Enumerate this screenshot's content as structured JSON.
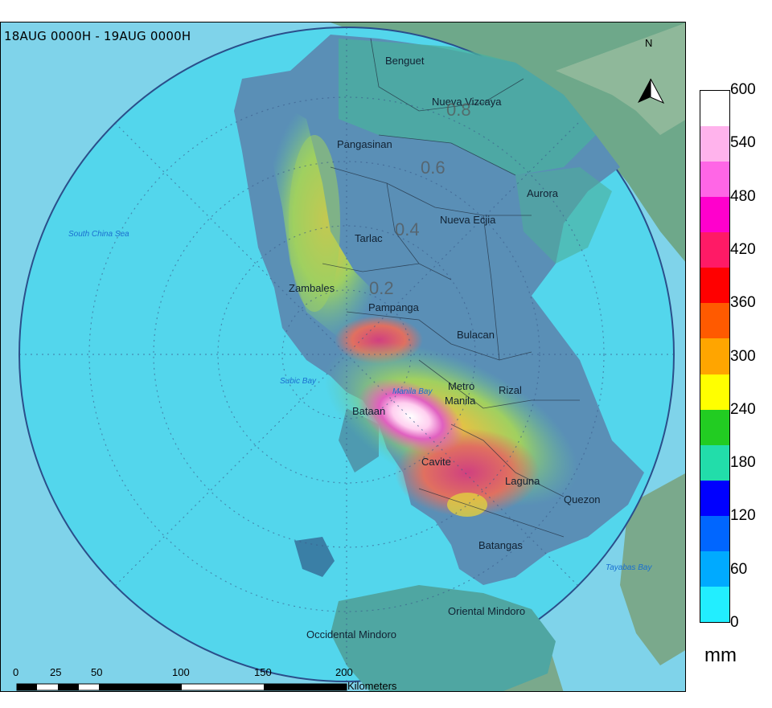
{
  "map": {
    "time_range": "18AUG 0000H - 19AUG 0000H",
    "north_label": "N",
    "provinces": [
      "Benguet",
      "Nueva Vizcaya",
      "Pangasinan",
      "Aurora",
      "Nueva Ecjia",
      "Tarlac",
      "Zambales",
      "Pampanga",
      "Bulacan",
      "Metro",
      "Manila",
      "Rizal",
      "Bataan",
      "Cavite",
      "Laguna",
      "Quezon",
      "Batangas",
      "Oriental Mindoro",
      "Occidental Mindoro"
    ],
    "water_bodies": [
      "South China Sea",
      "Subic Bay",
      "Manila Bay",
      "Tayabas Bay"
    ],
    "range_ring_labels": [
      "0.2",
      "0.4",
      "0.6",
      "0.8"
    ]
  },
  "legend": {
    "unit": "mm",
    "ticks": [
      "600",
      "540",
      "480",
      "420",
      "360",
      "300",
      "240",
      "180",
      "120",
      "60",
      "0"
    ],
    "colors": [
      "#ffffff",
      "#ffb3ec",
      "#ff66e6",
      "#ff00cc",
      "#ff1a66",
      "#ff0000",
      "#ff5a00",
      "#ffa500",
      "#ffff00",
      "#22cc22",
      "#22ddaa",
      "#0000ff",
      "#0066ff",
      "#00aaff",
      "#22eeff"
    ]
  },
  "scale_bar": {
    "labels": [
      "0",
      "25",
      "50",
      "100",
      "150",
      "200"
    ],
    "unit_label": "Kilometers"
  }
}
